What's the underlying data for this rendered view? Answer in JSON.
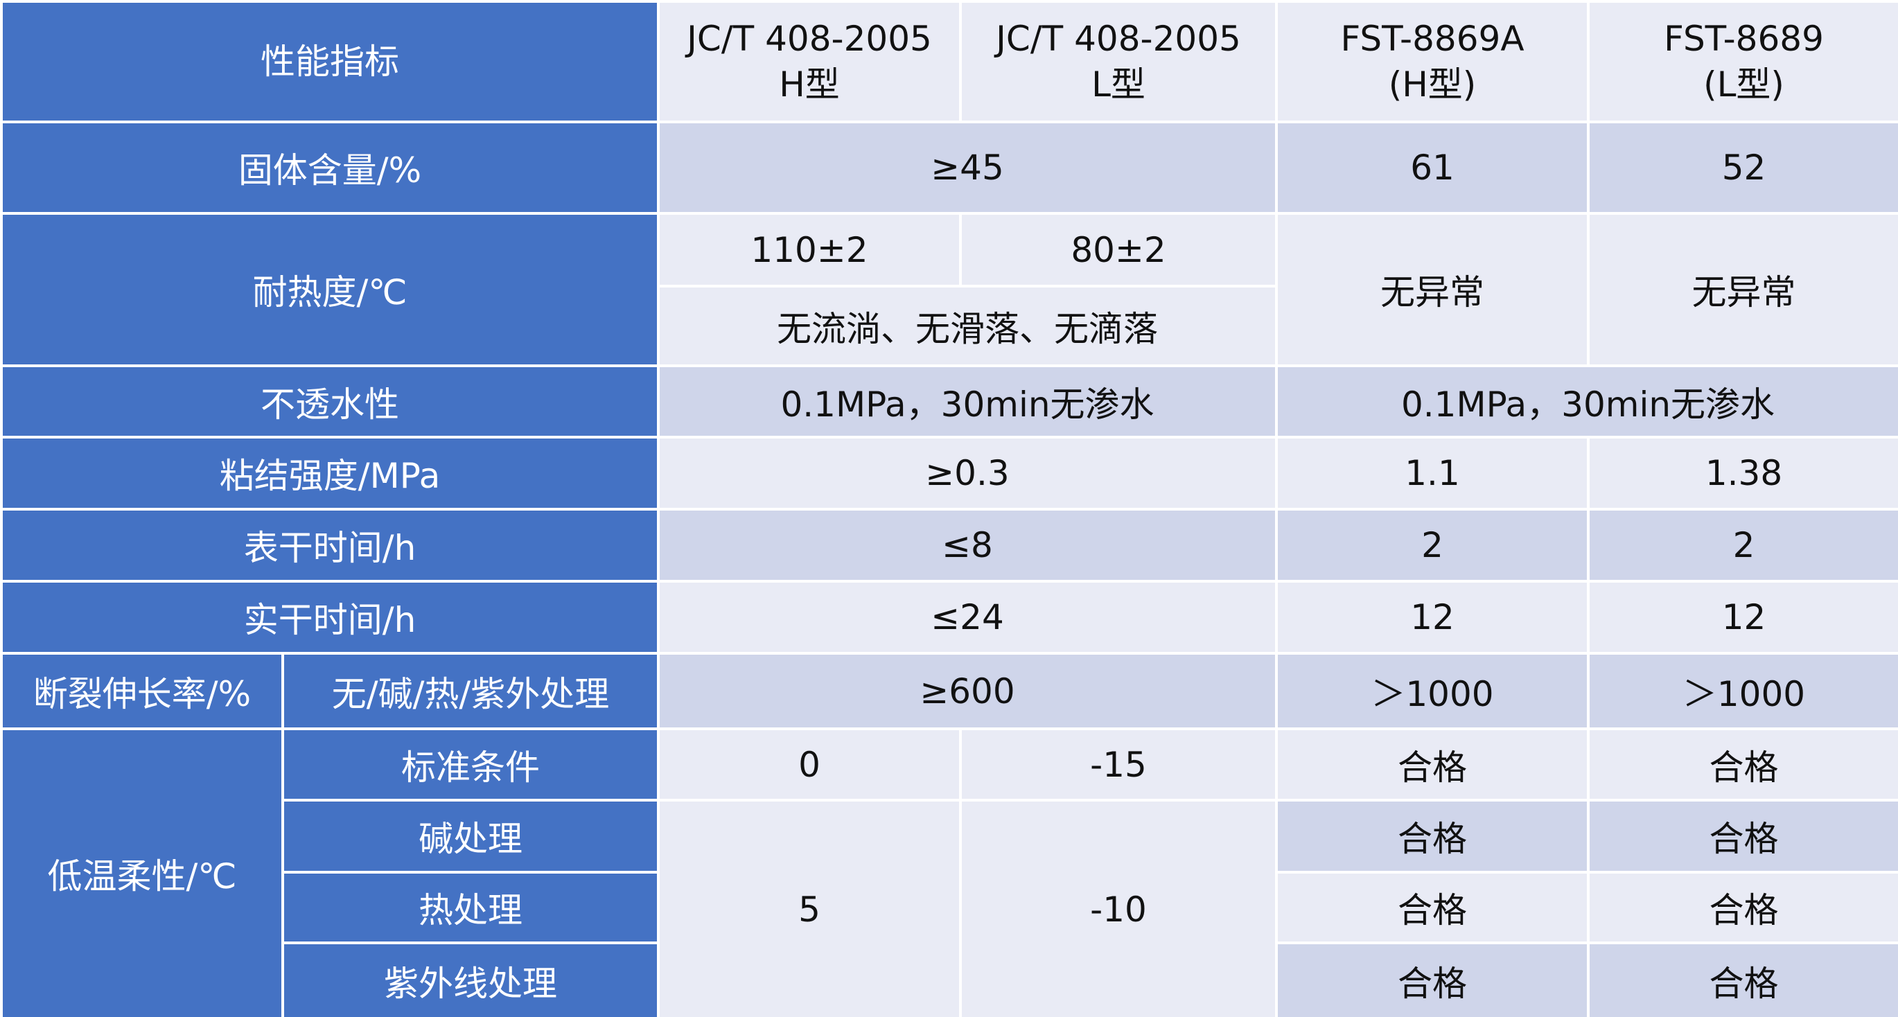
{
  "table": {
    "header": [
      [
        "性能指标"
      ],
      [
        "JC/T 408-2005",
        "H型"
      ],
      [
        "JC/T 408-2005",
        "L型"
      ],
      [
        "FST-8869A",
        "(H型)"
      ],
      [
        "FST-8689",
        "(L型)"
      ]
    ],
    "rows": [
      {
        "label": "固体含量/%",
        "values": [
          "≥45",
          "61",
          "52"
        ]
      },
      {
        "label": "耐热度/℃",
        "values": [
          "110±2",
          "80±2",
          "无流淌、无滑落、无滴落",
          "无异常",
          "无异常"
        ]
      },
      {
        "label": "不透水性",
        "values": [
          "0.1MPa，30min无渗水",
          "0.1MPa，30min无渗水"
        ]
      },
      {
        "label": "粘结强度/MPa",
        "values": [
          "≥0.3",
          "1.1",
          "1.38"
        ]
      },
      {
        "label": "表干时间/h",
        "values": [
          "≤8",
          "2",
          "2"
        ]
      },
      {
        "label": "实干时间/h",
        "values": [
          "≤24",
          "12",
          "12"
        ]
      },
      {
        "label": "断裂伸长率/%",
        "sublabel": "无/碱/热/紫外处理",
        "values": [
          "≥600",
          "＞1000",
          "＞1000"
        ]
      },
      {
        "label": "低温柔性/℃",
        "subrows": [
          {
            "sublabel": "标准条件",
            "values": [
              "0",
              "-15",
              "合格",
              "合格"
            ]
          },
          {
            "sublabel": "碱处理",
            "values": [
              "5",
              "-10",
              "合格",
              "合格"
            ]
          },
          {
            "sublabel": "热处理",
            "values": [
              "合格",
              "合格"
            ]
          },
          {
            "sublabel": "紫外线处理",
            "values": [
              "合格",
              "合格"
            ]
          }
        ]
      }
    ]
  }
}
